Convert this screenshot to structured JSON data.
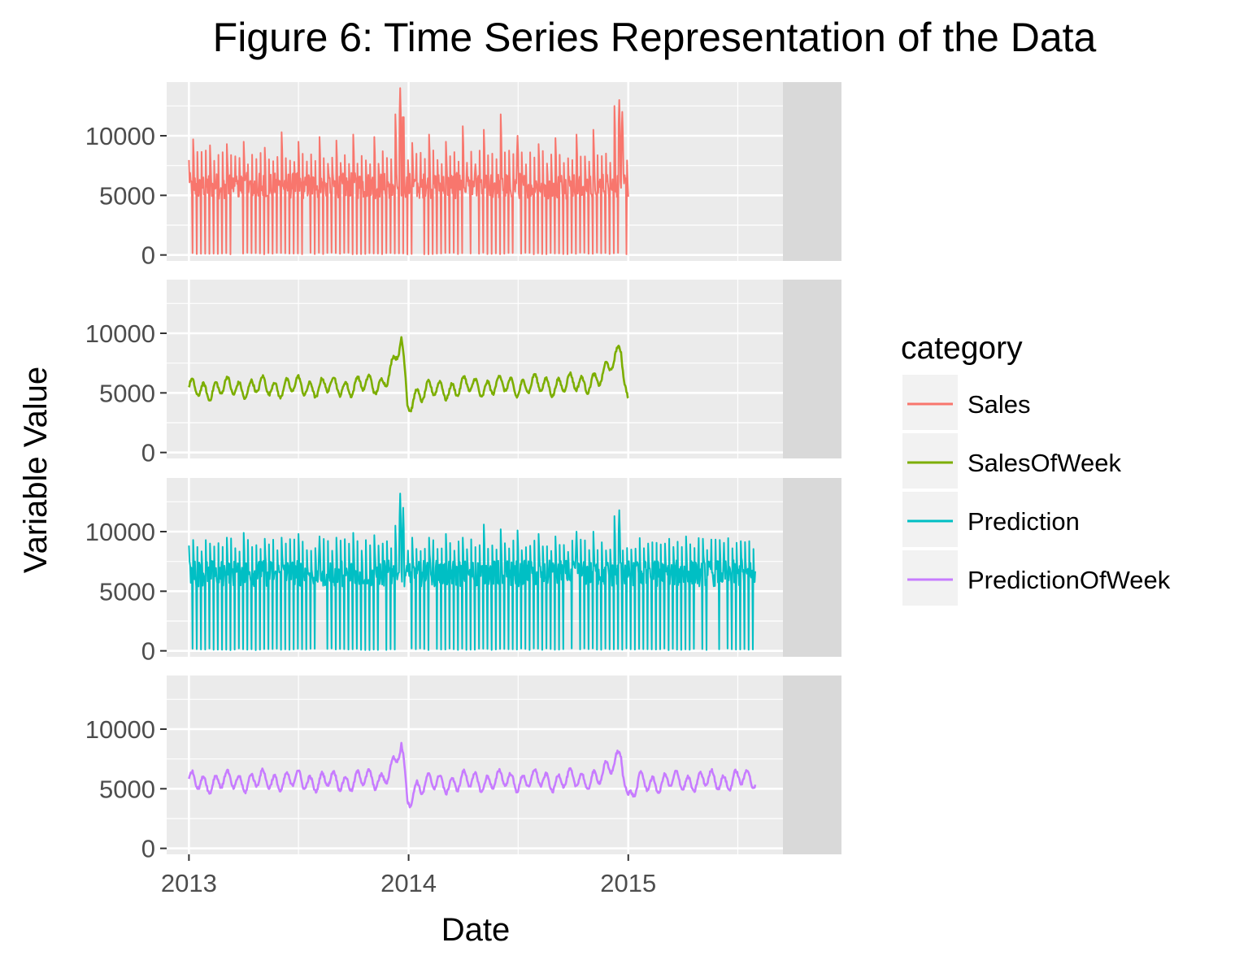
{
  "chart_data": {
    "type": "line",
    "title": "Figure 6: Time Series Representation of the Data",
    "xlabel": "Date",
    "ylabel": "Variable Value",
    "x_ticks": [
      "2013",
      "2014",
      "2015"
    ],
    "y_ticks": [
      0,
      5000,
      10000
    ],
    "xlim": [
      "2012-11-25",
      "2015-09-15"
    ],
    "ylim": [
      -500,
      14500
    ],
    "grid": true,
    "legend": {
      "title": "category",
      "position": "right"
    },
    "facets": [
      {
        "label": "Sales",
        "series": "Sales",
        "color": "#F8766D",
        "style": "daily",
        "start": "2013-01-01",
        "end": "2015-01-01",
        "baseline": 5800,
        "peaks": [
          {
            "date": "2013-01-08",
            "value": 9700
          },
          {
            "date": "2013-02-05",
            "value": 9200
          },
          {
            "date": "2013-03-05",
            "value": 9300
          },
          {
            "date": "2013-04-02",
            "value": 9500
          },
          {
            "date": "2013-05-07",
            "value": 9000
          },
          {
            "date": "2013-06-04",
            "value": 10300
          },
          {
            "date": "2013-07-02",
            "value": 9500
          },
          {
            "date": "2013-08-06",
            "value": 9900
          },
          {
            "date": "2013-09-03",
            "value": 9600
          },
          {
            "date": "2013-10-01",
            "value": 10100
          },
          {
            "date": "2013-11-05",
            "value": 9900
          },
          {
            "date": "2013-12-10",
            "value": 11800
          },
          {
            "date": "2013-12-18",
            "value": 14000
          },
          {
            "date": "2013-12-23",
            "value": 13600
          },
          {
            "date": "2014-01-07",
            "value": 9400
          },
          {
            "date": "2014-02-04",
            "value": 10100
          },
          {
            "date": "2014-03-04",
            "value": 9500
          },
          {
            "date": "2014-04-01",
            "value": 10800
          },
          {
            "date": "2014-05-06",
            "value": 10500
          },
          {
            "date": "2014-06-03",
            "value": 11800
          },
          {
            "date": "2014-07-01",
            "value": 10000
          },
          {
            "date": "2014-08-05",
            "value": 9300
          },
          {
            "date": "2014-09-02",
            "value": 9800
          },
          {
            "date": "2014-10-07",
            "value": 10100
          },
          {
            "date": "2014-11-04",
            "value": 10500
          },
          {
            "date": "2014-12-09",
            "value": 12500
          },
          {
            "date": "2014-12-17",
            "value": 13000
          },
          {
            "date": "2014-12-22",
            "value": 12000
          }
        ]
      },
      {
        "label": "SalesOfWeek",
        "series": "SalesOfWeek",
        "color": "#7CAE00",
        "style": "weekly",
        "start": "2013-01-01",
        "end": "2015-01-01",
        "anchors": [
          {
            "date": "2013-01-01",
            "value": 5200
          },
          {
            "date": "2013-03-01",
            "value": 5400
          },
          {
            "date": "2013-06-01",
            "value": 5500
          },
          {
            "date": "2013-09-01",
            "value": 5500
          },
          {
            "date": "2013-11-15",
            "value": 5700
          },
          {
            "date": "2013-12-10",
            "value": 7500
          },
          {
            "date": "2013-12-20",
            "value": 9500
          },
          {
            "date": "2013-12-30",
            "value": 4000
          },
          {
            "date": "2014-01-15",
            "value": 5000
          },
          {
            "date": "2014-04-01",
            "value": 5500
          },
          {
            "date": "2014-07-01",
            "value": 5600
          },
          {
            "date": "2014-10-01",
            "value": 5700
          },
          {
            "date": "2014-11-20",
            "value": 6200
          },
          {
            "date": "2014-12-10",
            "value": 8000
          },
          {
            "date": "2014-12-20",
            "value": 9000
          },
          {
            "date": "2015-01-01",
            "value": 4000
          }
        ]
      },
      {
        "label": "Prediction",
        "series": "Prediction",
        "color": "#00BFC4",
        "style": "daily",
        "start": "2013-01-01",
        "end": "2015-07-31",
        "baseline": 6500,
        "peaks": [
          {
            "date": "2013-01-08",
            "value": 9300
          },
          {
            "date": "2013-02-05",
            "value": 9000
          },
          {
            "date": "2013-03-05",
            "value": 9500
          },
          {
            "date": "2013-04-02",
            "value": 9900
          },
          {
            "date": "2013-05-07",
            "value": 9400
          },
          {
            "date": "2013-06-04",
            "value": 9500
          },
          {
            "date": "2013-07-02",
            "value": 9800
          },
          {
            "date": "2013-08-06",
            "value": 9600
          },
          {
            "date": "2013-09-03",
            "value": 9500
          },
          {
            "date": "2013-10-01",
            "value": 9900
          },
          {
            "date": "2013-11-05",
            "value": 9700
          },
          {
            "date": "2013-12-10",
            "value": 10500
          },
          {
            "date": "2013-12-18",
            "value": 13200
          },
          {
            "date": "2013-12-23",
            "value": 12000
          },
          {
            "date": "2014-01-07",
            "value": 9500
          },
          {
            "date": "2014-02-04",
            "value": 9500
          },
          {
            "date": "2014-03-04",
            "value": 9800
          },
          {
            "date": "2014-04-01",
            "value": 9500
          },
          {
            "date": "2014-05-06",
            "value": 10600
          },
          {
            "date": "2014-06-03",
            "value": 10200
          },
          {
            "date": "2014-07-01",
            "value": 10100
          },
          {
            "date": "2014-08-05",
            "value": 9800
          },
          {
            "date": "2014-09-02",
            "value": 9600
          },
          {
            "date": "2014-10-07",
            "value": 10000
          },
          {
            "date": "2014-11-04",
            "value": 10000
          },
          {
            "date": "2014-12-09",
            "value": 11300
          },
          {
            "date": "2014-12-17",
            "value": 11800
          },
          {
            "date": "2015-01-06",
            "value": 8500
          },
          {
            "date": "2015-02-03",
            "value": 9000
          },
          {
            "date": "2015-03-03",
            "value": 9000
          },
          {
            "date": "2015-04-07",
            "value": 9600
          },
          {
            "date": "2015-05-05",
            "value": 9400
          },
          {
            "date": "2015-06-02",
            "value": 9300
          },
          {
            "date": "2015-07-07",
            "value": 9200
          }
        ]
      },
      {
        "label": "PredictionOfWeek",
        "series": "PredictionOfWeek",
        "color": "#C77CFF",
        "style": "weekly",
        "start": "2013-01-01",
        "end": "2015-07-31",
        "anchors": [
          {
            "date": "2013-01-01",
            "value": 5500
          },
          {
            "date": "2013-03-01",
            "value": 5600
          },
          {
            "date": "2013-06-01",
            "value": 5700
          },
          {
            "date": "2013-09-01",
            "value": 5600
          },
          {
            "date": "2013-11-15",
            "value": 5800
          },
          {
            "date": "2013-12-10",
            "value": 7000
          },
          {
            "date": "2013-12-20",
            "value": 8600
          },
          {
            "date": "2013-12-30",
            "value": 4000
          },
          {
            "date": "2014-01-15",
            "value": 5300
          },
          {
            "date": "2014-04-01",
            "value": 5600
          },
          {
            "date": "2014-07-01",
            "value": 5700
          },
          {
            "date": "2014-10-01",
            "value": 5700
          },
          {
            "date": "2014-11-20",
            "value": 6000
          },
          {
            "date": "2014-12-10",
            "value": 7300
          },
          {
            "date": "2014-12-20",
            "value": 8200
          },
          {
            "date": "2015-01-01",
            "value": 4000
          },
          {
            "date": "2015-01-20",
            "value": 5500
          },
          {
            "date": "2015-04-01",
            "value": 5600
          },
          {
            "date": "2015-07-31",
            "value": 5800
          }
        ]
      }
    ]
  }
}
